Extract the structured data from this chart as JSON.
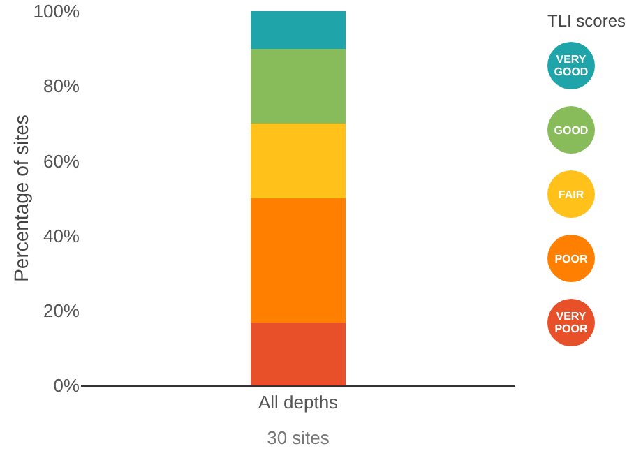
{
  "chart_data": {
    "type": "bar",
    "stacked": true,
    "categories": [
      "All depths"
    ],
    "ylabel": "Percentage of sites",
    "xlabel": "30 sites",
    "legend_title": "TLI scores",
    "legend": "right",
    "grid": false,
    "ylim": [
      0,
      100
    ],
    "yticks": [
      {
        "value": 0,
        "label": "0%"
      },
      {
        "value": 20,
        "label": "20%"
      },
      {
        "value": 40,
        "label": "40%"
      },
      {
        "value": 60,
        "label": "60%"
      },
      {
        "value": 80,
        "label": "80%"
      },
      {
        "value": 100,
        "label": "100%"
      }
    ],
    "series": [
      {
        "name": "VERY POOR",
        "color": "#e8502a",
        "values": [
          16.7
        ]
      },
      {
        "name": "POOR",
        "color": "#ff8000",
        "values": [
          33.3
        ]
      },
      {
        "name": "FAIR",
        "color": "#ffc11a",
        "values": [
          20
        ]
      },
      {
        "name": "GOOD",
        "color": "#88bb5a",
        "values": [
          20
        ]
      },
      {
        "name": "VERY GOOD",
        "color": "#1fa5a9",
        "values": [
          10
        ]
      }
    ]
  }
}
